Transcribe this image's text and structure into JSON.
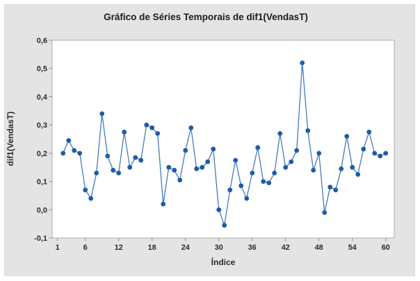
{
  "chart_data": {
    "type": "line",
    "title": "Gráfico de Séries Temporais de dif1(VendasT)",
    "xlabel": "Índice",
    "ylabel": "dif1(VendasT)",
    "x": [
      2,
      3,
      4,
      5,
      6,
      7,
      8,
      9,
      10,
      11,
      12,
      13,
      14,
      15,
      16,
      17,
      18,
      19,
      20,
      21,
      22,
      23,
      24,
      25,
      26,
      27,
      28,
      29,
      30,
      31,
      32,
      33,
      34,
      35,
      36,
      37,
      38,
      39,
      40,
      41,
      42,
      43,
      44,
      45,
      46,
      47,
      48,
      49,
      50,
      51,
      52,
      53,
      54,
      55,
      56,
      57,
      58,
      59,
      60
    ],
    "values": [
      0.2,
      0.245,
      0.21,
      0.2,
      0.07,
      0.04,
      0.13,
      0.34,
      0.19,
      0.14,
      0.13,
      0.275,
      0.15,
      0.185,
      0.175,
      0.3,
      0.29,
      0.27,
      0.02,
      0.15,
      0.14,
      0.105,
      0.21,
      0.29,
      0.145,
      0.15,
      0.17,
      0.215,
      0.0,
      -0.055,
      0.07,
      0.175,
      0.085,
      0.04,
      0.13,
      0.22,
      0.1,
      0.095,
      0.13,
      0.27,
      0.15,
      0.17,
      0.21,
      0.52,
      0.28,
      0.14,
      0.2,
      -0.01,
      0.08,
      0.07,
      0.145,
      0.26,
      0.15,
      0.125,
      0.215,
      0.275,
      0.2,
      0.19,
      0.2
    ],
    "xticks": [
      1,
      6,
      12,
      18,
      24,
      30,
      36,
      42,
      48,
      54,
      60
    ],
    "ytick_labels": [
      "0,6",
      "0,5",
      "0,4",
      "0,3",
      "0,2",
      "0,1",
      "0,0",
      "-0,1"
    ],
    "ytick_values": [
      0.6,
      0.5,
      0.4,
      0.3,
      0.2,
      0.1,
      0.0,
      -0.1
    ],
    "ylim": [
      -0.1,
      0.6
    ],
    "xlim": [
      0,
      61.5
    ],
    "grid": false,
    "legend_position": "none",
    "marker_color": "#1d5ca6",
    "line_color": "#4379bd",
    "panel_background": "#e4e4e4",
    "plot_background": "#ffffff",
    "plot_border_color": "#ababab",
    "tick_color": "#8c8c8c",
    "text_color": "#2b2b2b"
  }
}
